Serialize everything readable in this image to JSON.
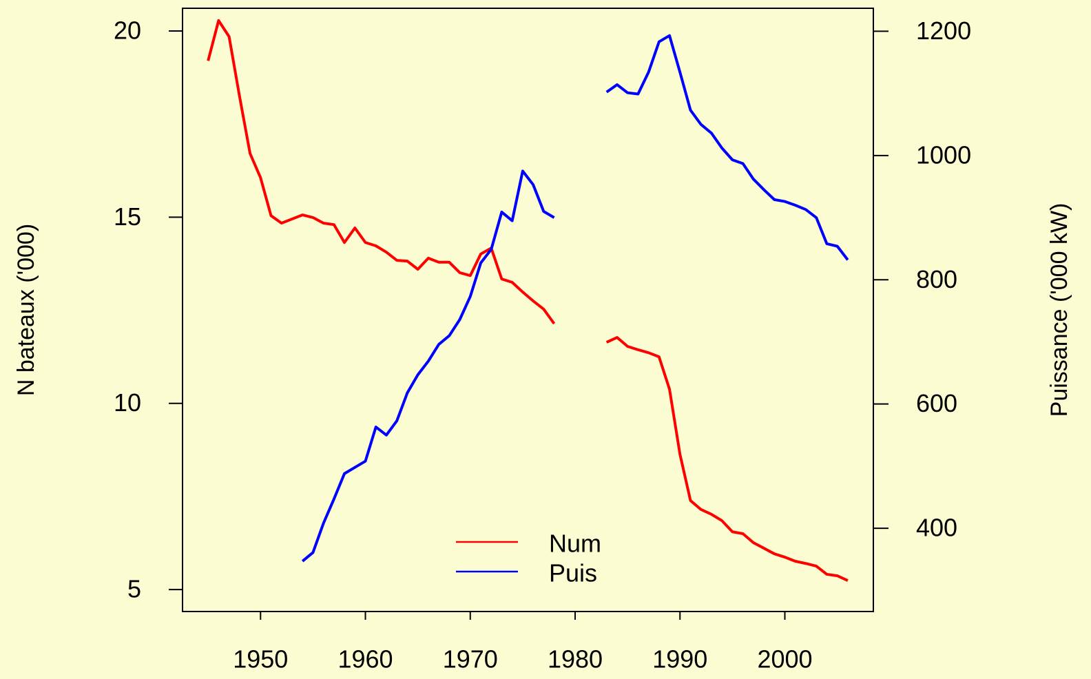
{
  "chart_data": {
    "type": "line",
    "ylabel": "N bateaux ('000)",
    "y2label": "Puissance ('000 kW)",
    "x": [
      1945,
      1946,
      1947,
      1948,
      1949,
      1950,
      1951,
      1952,
      1953,
      1954,
      1955,
      1956,
      1957,
      1958,
      1959,
      1960,
      1961,
      1962,
      1963,
      1964,
      1965,
      1966,
      1967,
      1968,
      1969,
      1970,
      1971,
      1972,
      1973,
      1974,
      1975,
      1976,
      1977,
      1978,
      1979,
      1980,
      1981,
      1982,
      1983,
      1984,
      1985,
      1986,
      1987,
      1988,
      1989,
      1990,
      1991,
      1992,
      1993,
      1994,
      1995,
      1996,
      1997,
      1998,
      1999,
      2000,
      2001,
      2002,
      2003,
      2004,
      2005,
      2006
    ],
    "series": [
      {
        "name": "Num",
        "color": "#ff0000",
        "axis": "y",
        "values": [
          19.2,
          20.28,
          19.85,
          18.24,
          16.71,
          16.06,
          15.04,
          14.84,
          14.95,
          15.06,
          14.99,
          14.84,
          14.8,
          14.32,
          14.71,
          14.32,
          14.23,
          14.06,
          13.84,
          13.82,
          13.6,
          13.9,
          13.79,
          13.79,
          13.51,
          13.43,
          14.01,
          14.17,
          13.34,
          13.25,
          12.99,
          12.75,
          12.53,
          12.14,
          null,
          null,
          null,
          null,
          11.64,
          11.77,
          11.53,
          11.44,
          11.36,
          11.25,
          10.38,
          8.63,
          7.39,
          7.15,
          7.02,
          6.85,
          6.55,
          6.5,
          6.26,
          6.11,
          5.96,
          5.87,
          5.76,
          5.7,
          5.63,
          5.41,
          5.37,
          5.24
        ]
      },
      {
        "name": "Puis",
        "color": "#0000ff",
        "axis": "y2",
        "values": [
          null,
          null,
          null,
          null,
          null,
          null,
          null,
          null,
          null,
          347,
          361,
          408,
          447,
          488,
          498,
          508,
          563,
          550,
          573,
          618,
          647,
          669,
          696,
          710,
          736,
          773,
          827,
          849,
          909,
          895,
          975,
          953,
          910,
          900,
          null,
          null,
          null,
          null,
          1102,
          1114,
          1101,
          1099,
          1134,
          1183,
          1193,
          1134,
          1073,
          1050,
          1036,
          1012,
          993,
          987,
          962,
          945,
          929,
          926,
          920,
          913,
          900,
          858,
          854,
          832
        ]
      }
    ],
    "xlim": [
      1942.56,
      2008.44
    ],
    "xticks": [
      1950,
      1960,
      1970,
      1980,
      1990,
      2000
    ],
    "ylim": [
      4.41,
      20.61
    ],
    "yticks": [
      5,
      10,
      15,
      20
    ],
    "y2lim": [
      266,
      1237
    ],
    "y2ticks": [
      400,
      600,
      800,
      1000,
      1200
    ],
    "legend": "bottom"
  }
}
